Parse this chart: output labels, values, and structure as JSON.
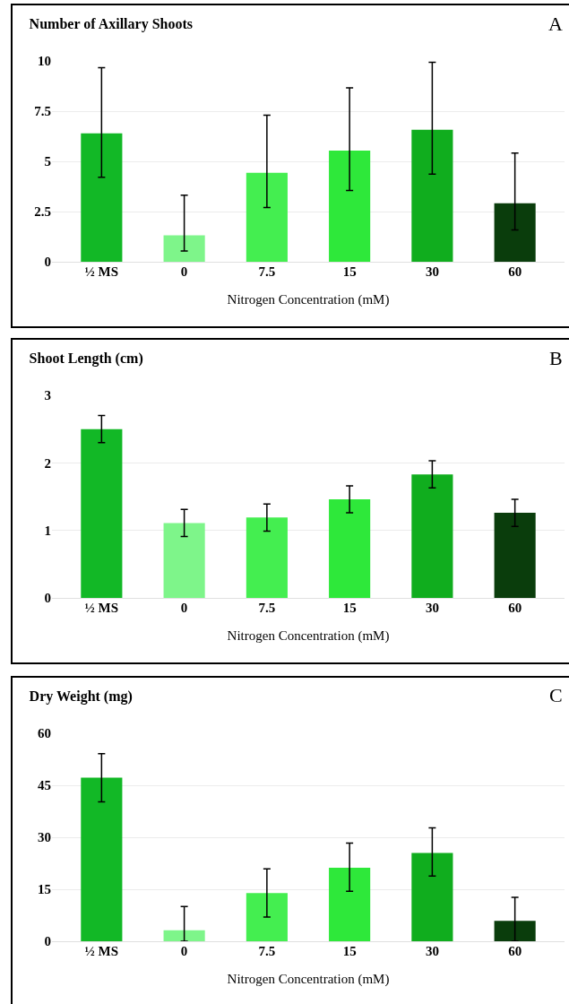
{
  "chart_data": [
    {
      "type": "bar",
      "title": "Number of Axillary Shoots",
      "xlabel": "Nitrogen Concentration (mM)",
      "annotations": [
        "A"
      ],
      "categories": [
        "½ MS",
        "0",
        "7.5",
        "15",
        "30",
        "60"
      ],
      "values": [
        6.4,
        1.32,
        4.43,
        5.54,
        6.57,
        2.91
      ],
      "colors": [
        "#12b826",
        "#7ef58a",
        "#44ee50",
        "#2ee83a",
        "#10ad1e",
        "#0a3d0c"
      ],
      "errors": [
        [
          4.21,
          9.66
        ],
        [
          0.54,
          3.32
        ],
        [
          2.7,
          7.3
        ],
        [
          3.55,
          8.66
        ],
        [
          4.36,
          9.93
        ],
        [
          1.59,
          5.41
        ]
      ],
      "ylim": [
        0,
        10
      ],
      "yticks": [
        0,
        2.5,
        5,
        7.5,
        10
      ],
      "grid": "y"
    },
    {
      "type": "bar",
      "title": "Shoot Length (cm)",
      "xlabel": "Nitrogen Concentration (mM)",
      "annotations": [
        "B"
      ],
      "categories": [
        "½ MS",
        "0",
        "7.5",
        "15",
        "30",
        "60"
      ],
      "values": [
        2.5,
        1.11,
        1.19,
        1.46,
        1.83,
        1.26
      ],
      "colors": [
        "#12b826",
        "#7ef58a",
        "#44ee50",
        "#2ee83a",
        "#10ad1e",
        "#0a3d0c"
      ],
      "errors": [
        0.2,
        0.2,
        0.2,
        0.2,
        0.2,
        0.2
      ],
      "ylim": [
        0,
        3
      ],
      "yticks": [
        0,
        1,
        2,
        3
      ],
      "grid": "y"
    },
    {
      "type": "bar",
      "title": "Dry Weight (mg)",
      "xlabel": "Nitrogen Concentration (mM)",
      "annotations": [
        "C"
      ],
      "categories": [
        "½ MS",
        "0",
        "7.5",
        "15",
        "30",
        "60"
      ],
      "values": [
        47.2,
        3.2,
        13.9,
        21.2,
        25.5,
        5.9
      ],
      "colors": [
        "#12b826",
        "#7ef58a",
        "#44ee50",
        "#2ee83a",
        "#10ad1e",
        "#0a3d0c"
      ],
      "errors": [
        [
          40.2,
          54.1
        ],
        [
          0,
          10
        ],
        [
          7,
          20.9
        ],
        [
          14.4,
          28.3
        ],
        [
          18.8,
          32.7
        ],
        [
          0,
          12.7
        ]
      ],
      "ylim": [
        0,
        60
      ],
      "yticks": [
        0,
        15,
        30,
        45,
        60
      ],
      "grid": "y"
    }
  ]
}
